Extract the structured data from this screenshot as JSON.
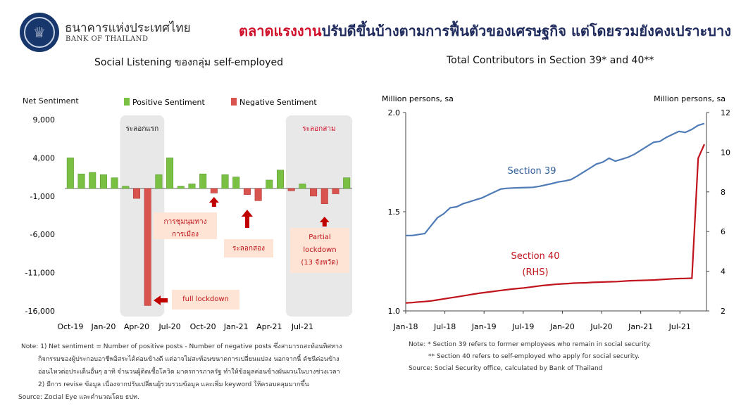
{
  "header": {
    "bank_name_th": "ธนาคารแห่งประเทศไทย",
    "bank_name_en": "BANK OF THAILAND",
    "headline_red": "ตลาดแรงงาน",
    "headline_dark": "ปรับดีขึ้นบ้างตามการฟื้นตัวของเศรษฐกิจ แต่โดยรวมยังคงเปราะบาง"
  },
  "colors": {
    "brand_navy": "#17366b",
    "headline_red": "#d0102b",
    "positive": "#7ac143",
    "negative": "#d9534f",
    "section39": "#4f7bb6",
    "section40": "#c0131c",
    "phase_shade": "#e8e8e8",
    "callout_bg": "#fde4d4",
    "arrow_red": "#c00000"
  },
  "chart_data": [
    {
      "type": "bar",
      "title": "Social Listening ของกลุ่ม self-employed",
      "ylabel": "Net Sentiment",
      "ylim": [
        -16000,
        9000
      ],
      "yticks": [
        9000,
        4000,
        -1000,
        -6000,
        -11000,
        -16000
      ],
      "ytick_labels": [
        "9,000",
        "4,000",
        "-1,000",
        "-6,000",
        "-11,000",
        "-16,000"
      ],
      "xtick_labels": [
        "Oct-19",
        "Jan-20",
        "Apr-20",
        "Jul-20",
        "Oct-20",
        "Jan-21",
        "Apr-21",
        "Jul-21"
      ],
      "xtick_index": [
        0,
        3,
        6,
        9,
        12,
        15,
        18,
        21
      ],
      "legend": [
        "Positive Sentiment",
        "Negative Sentiment"
      ],
      "series": [
        {
          "name": "Net Sentiment",
          "values": [
            4000,
            1900,
            2100,
            1800,
            1400,
            300,
            -1300,
            -15300,
            1800,
            4000,
            300,
            600,
            1900,
            -600,
            1800,
            1500,
            -800,
            -1600,
            1100,
            2400,
            -300,
            600,
            -1000,
            -2000,
            -700,
            1400
          ]
        }
      ],
      "phases": [
        {
          "label": "ระลอกแรก",
          "from_index": 5,
          "to_index": 8
        },
        {
          "label": "ระลอกสาม",
          "from_index": 20,
          "to_index": 25
        }
      ],
      "annotations": [
        {
          "lines": [
            "full lockdown"
          ],
          "bar_index": 7
        },
        {
          "lines": [
            "การชุมนุมทาง",
            "การเมือง"
          ],
          "bar_index": 13
        },
        {
          "lines": [
            "ระลอกสอง"
          ],
          "bar_index": 16
        },
        {
          "lines": [
            "Partial",
            "lockdown",
            "(13 จังหวัด)"
          ],
          "bar_index": 23
        }
      ],
      "note_lines": [
        "Note: 1) Net sentiment = Number of positive posts - Number of negative posts ซึ่งสามารถสะท้อนทิศทาง",
        "กิจกรรมของผู้ประกอบอาชีพอิสระได้ค่อนข้างดี แต่อาจไม่สะท้อนขนาดการเปลี่ยนแปลง นอกจากนี้ ดัชนีค่อนข้าง",
        "อ่อนไหวต่อประเด็นอื่นๆ อาทิ จำนวนผู้ติดเชื้อโควิด มาตรการภาครัฐ ทำให้ข้อมูลค่อนข้างผันผวนในบางช่วงเวลา",
        "2) มีการ revise ข้อมูล เนื่องจากปรับเปลี่ยนผู้รวบรวมข้อมูล และเพิ่ม keyword ให้ครอบคลุมมากขึ้น"
      ],
      "source": "Source: Zocial Eye และคำนวณโดย ธปท."
    },
    {
      "type": "line",
      "title": "Total Contributors in Section 39* and 40**",
      "ylabel_left": "Million persons, sa",
      "ylabel_right": "Million persons, sa",
      "ylim_left": [
        1.0,
        2.0
      ],
      "ylim_right": [
        2,
        12
      ],
      "yticks_left": [
        "1.0",
        "1.5",
        "2.0"
      ],
      "yticks_right": [
        "2",
        "4",
        "6",
        "8",
        "10",
        "12"
      ],
      "xtick_labels": [
        "Jan-18",
        "Jul-18",
        "Jan-19",
        "Jul-19",
        "Jan-20",
        "Jul-20",
        "Jan-21",
        "Jul-21"
      ],
      "x_start": "Jan-18",
      "series": [
        {
          "name": "Section 39",
          "axis": "left",
          "values": [
            1.38,
            1.38,
            1.385,
            1.39,
            1.43,
            1.47,
            1.49,
            1.52,
            1.525,
            1.54,
            1.55,
            1.56,
            1.57,
            1.585,
            1.6,
            1.615,
            1.618,
            1.62,
            1.621,
            1.622,
            1.623,
            1.628,
            1.635,
            1.642,
            1.65,
            1.655,
            1.662,
            1.68,
            1.7,
            1.72,
            1.74,
            1.75,
            1.77,
            1.755,
            1.765,
            1.775,
            1.79,
            1.81,
            1.83,
            1.85,
            1.855,
            1.875,
            1.89,
            1.905,
            1.9,
            1.915,
            1.935,
            1.945
          ]
        },
        {
          "name": "Section 40",
          "label_lines": [
            "Section 40",
            "(RHS)"
          ],
          "axis": "right",
          "values": [
            2.4,
            2.42,
            2.45,
            2.47,
            2.5,
            2.55,
            2.6,
            2.65,
            2.7,
            2.75,
            2.8,
            2.85,
            2.9,
            2.94,
            2.98,
            3.02,
            3.06,
            3.1,
            3.13,
            3.16,
            3.2,
            3.24,
            3.28,
            3.31,
            3.34,
            3.36,
            3.38,
            3.4,
            3.41,
            3.42,
            3.44,
            3.45,
            3.46,
            3.47,
            3.48,
            3.5,
            3.52,
            3.53,
            3.54,
            3.55,
            3.56,
            3.58,
            3.6,
            3.62,
            3.63,
            3.64,
            3.65,
            9.7,
            10.4
          ]
        }
      ],
      "note_lines": [
        "Note: * Section 39 refers to former employees who remain in social security.",
        "** Section 40 refers to self-employed who apply for social security.",
        "Source: Social Security office, calculated by Bank of Thailand"
      ]
    }
  ]
}
